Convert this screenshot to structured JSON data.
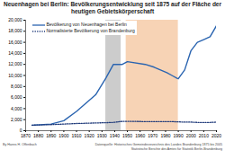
{
  "chart_data": {
    "type": "line",
    "title": "Neuenhagen bei Berlin: Bevölkerungsentwicklung seit 1875 auf der Fläche der heutigen Gebietskörperschaft",
    "x": [
      1875,
      1890,
      1900,
      1910,
      1925,
      1933,
      1939,
      1946,
      1950,
      1964,
      1971,
      1981,
      1985,
      1989,
      1990,
      1995,
      2000,
      2005,
      2010,
      2015,
      2020
    ],
    "series": [
      {
        "name": "Bevölkerung von Neuenhagen bei Berlin",
        "color": "#2a64b0",
        "line_style": "solid",
        "values": [
          1000,
          1200,
          1800,
          3500,
          6500,
          9500,
          12000,
          12000,
          12500,
          12000,
          11500,
          10500,
          10000,
          9500,
          9400,
          11000,
          14500,
          16000,
          16500,
          17000,
          19000
        ]
      },
      {
        "name": "Normalisierte Bevölkerung von Brandenburg",
        "color": "#1f3a7a",
        "line_style": "dotted",
        "values": [
          1000,
          1100,
          1200,
          1300,
          1400,
          1450,
          1500,
          1700,
          1700,
          1650,
          1650,
          1650,
          1650,
          1600,
          1600,
          1550,
          1550,
          1500,
          1500,
          1500,
          1550
        ]
      }
    ],
    "bands": [
      {
        "x1": 1933,
        "x2": 1945,
        "color": "#cccccc"
      },
      {
        "x1": 1949,
        "x2": 1990,
        "color": "#f7d3b5"
      }
    ],
    "xlim": [
      1870,
      2020
    ],
    "xticks": [
      1870,
      1880,
      1890,
      1900,
      1910,
      1920,
      1930,
      1940,
      1950,
      1960,
      1970,
      1980,
      1990,
      2000,
      2010,
      2020
    ],
    "ylim": [
      0,
      20000
    ],
    "yticks": [
      0,
      {
        "value": 2000,
        "label": "2,000"
      },
      {
        "value": 4000,
        "label": "4,000"
      },
      {
        "value": 6000,
        "label": "6,000"
      },
      {
        "value": 8000,
        "label": "8,000"
      },
      {
        "value": 10000,
        "label": "10,000"
      },
      {
        "value": 12000,
        "label": "12,000"
      },
      {
        "value": 14000,
        "label": "14,000"
      },
      {
        "value": 16000,
        "label": "16,000"
      },
      {
        "value": 18000,
        "label": "18,000"
      },
      {
        "value": 20000,
        "label": "20,000"
      }
    ],
    "grid": false,
    "legend": "top-left",
    "footer_left": "By Hanns H. Offenbach",
    "footer_right": [
      "Datenquelle: Historisches Gemeindeverzeichnis des Landes Brandenburg 1875 bis 2005",
      "Statistische Berichte des Amtes für Statistik Berlin-Brandenburg"
    ]
  }
}
